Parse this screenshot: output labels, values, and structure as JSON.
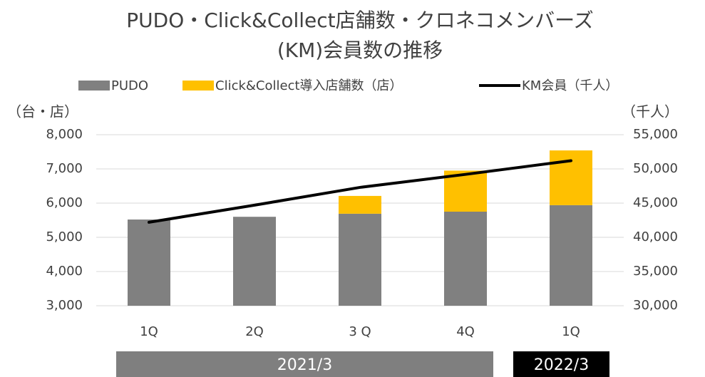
{
  "chart_data": {
    "type": "bar",
    "title": [
      "PUDO・Click&Collect店舗数・クロネコメンバーズ",
      "(KM)会員数の推移"
    ],
    "y_label": "（台・店）",
    "y2_label": "（千人）",
    "categories": [
      "1Q",
      "2Q",
      "3 Q",
      "4Q",
      "1Q"
    ],
    "periods": [
      {
        "label": "2021/3",
        "color": "#7f7f7f"
      },
      {
        "label": "2022/3",
        "color": "#000000"
      }
    ],
    "series": [
      {
        "name": "PUDO",
        "type": "bar",
        "color": "#808080",
        "values": [
          5520,
          5600,
          5690,
          5750,
          5940
        ]
      },
      {
        "name": "Click&Collect導入店舗数（店）",
        "type": "bar",
        "color": "#ffc000",
        "values": [
          0,
          0,
          520,
          1200,
          1600
        ]
      },
      {
        "name": "KM会員（千人）",
        "type": "line",
        "axis": "y2",
        "color": "#000000",
        "values": [
          42200,
          44700,
          47300,
          49200,
          51200
        ]
      }
    ],
    "ylim": [
      3000,
      8000
    ],
    "yticks": [
      {
        "value": 3000,
        "label": "3,000"
      },
      {
        "value": 4000,
        "label": "4,000"
      },
      {
        "value": 5000,
        "label": "5,000"
      },
      {
        "value": 6000,
        "label": "6,000"
      },
      {
        "value": 7000,
        "label": "7,000"
      },
      {
        "value": 8000,
        "label": "8,000"
      }
    ],
    "y2lim": [
      30000,
      55000
    ],
    "y2ticks": [
      {
        "value": 30000,
        "label": "30,000"
      },
      {
        "value": 35000,
        "label": "35,000"
      },
      {
        "value": 40000,
        "label": "40,000"
      },
      {
        "value": 45000,
        "label": "45,000"
      },
      {
        "value": 50000,
        "label": "50,000"
      },
      {
        "value": 55000,
        "label": "55,000"
      }
    ],
    "grid": true,
    "legend": "top"
  }
}
